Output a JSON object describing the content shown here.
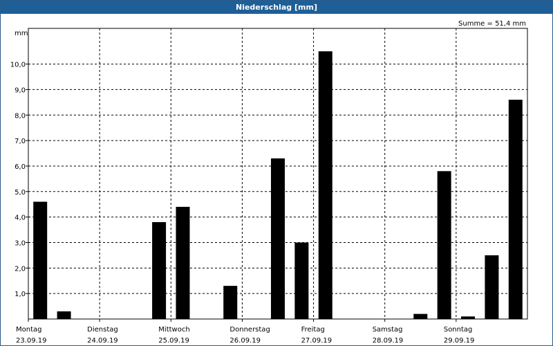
{
  "window": {
    "title": "Niederschlag [mm]"
  },
  "chart_data": {
    "type": "bar",
    "title": "Niederschlag [mm]",
    "ylabel": "mm",
    "summary": "Summe = 51,4 mm",
    "ylim": [
      0,
      11.4
    ],
    "yticks": [
      "1,0",
      "2,0",
      "3,0",
      "4,0",
      "5,0",
      "6,0",
      "7,0",
      "8,0",
      "9,0",
      "10,0"
    ],
    "grid": true,
    "days": [
      {
        "name": "Montag",
        "date": "23.09.19"
      },
      {
        "name": "Dienstag",
        "date": "24.09.19"
      },
      {
        "name": "Mittwoch",
        "date": "25.09.19"
      },
      {
        "name": "Donnerstag",
        "date": "26.09.19"
      },
      {
        "name": "Freitag",
        "date": "27.09.19"
      },
      {
        "name": "Samstag",
        "date": "28.09.19"
      },
      {
        "name": "Sonntag",
        "date": "29.09.19"
      }
    ],
    "periods_per_day": 3,
    "values": [
      4.6,
      0.3,
      0,
      0,
      0,
      3.8,
      4.4,
      0,
      1.3,
      0,
      6.3,
      3.0,
      10.5,
      0,
      0,
      0,
      0.2,
      5.8,
      0.1,
      2.5,
      8.6
    ],
    "bar_color": "#000000",
    "grid_color": "#000000"
  }
}
